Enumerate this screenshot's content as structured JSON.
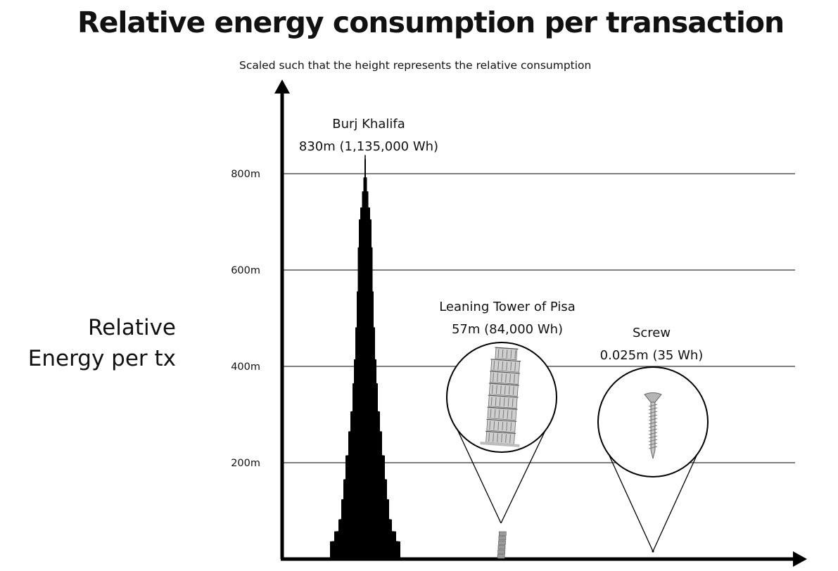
{
  "title": "Relative energy consumption per transaction",
  "subtitle": "Scaled such that the height represents the relative consumption",
  "ylabel_lines": [
    "Relative",
    "Energy per tx"
  ],
  "chart_data": {
    "type": "bar",
    "title": "Relative energy consumption per transaction",
    "subtitle": "Scaled such that the height represents the relative consumption",
    "ylabel": "Relative Energy per tx",
    "yunit": "m",
    "ylim": [
      0,
      830
    ],
    "yticks": [
      200,
      400,
      600,
      800
    ],
    "ytick_labels": [
      "200m",
      "400m",
      "600m",
      "800m"
    ],
    "grid": true,
    "categories": [
      "Burj Khalifa",
      "Leaning Tower of Pisa",
      "Screw"
    ],
    "height_m": [
      830,
      57,
      0.025
    ],
    "energy_wh": [
      1135000,
      84000,
      35
    ],
    "labels": [
      [
        "Burj Khalifa",
        "830m (1,135,000 Wh)"
      ],
      [
        "Leaning Tower of Pisa",
        "57m (84,000 Wh)"
      ],
      [
        "Screw",
        "0.025m (35 Wh)"
      ]
    ],
    "icons": [
      "skyscraper-icon",
      "leaning-tower-icon",
      "screw-icon"
    ]
  }
}
